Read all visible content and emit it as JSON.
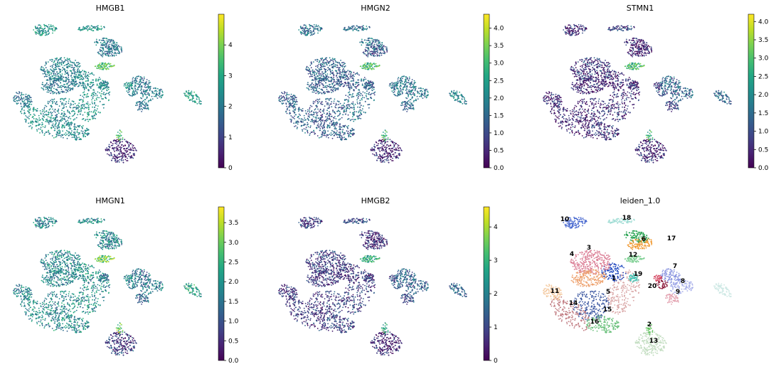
{
  "chart_data": [
    {
      "type": "scatter",
      "title": "HMGB1",
      "colorbar": {
        "min": 0,
        "max": 5.0,
        "ticks": [
          "0",
          "1",
          "2",
          "3",
          "4"
        ],
        "tick_values": [
          0,
          1,
          2,
          3,
          4
        ]
      },
      "cluster_levels": [
        2.2,
        2.4,
        2.6,
        2.6,
        2.4,
        2.6,
        2.0,
        2.0,
        2.0,
        2.2,
        2.8,
        2.0,
        3.6,
        0.6,
        2.0,
        2.0,
        2.0,
        2.4,
        2.6,
        2.8,
        2.0,
        3.6
      ]
    },
    {
      "type": "scatter",
      "title": "HMGN2",
      "colorbar": {
        "min": 0,
        "max": 4.4,
        "ticks": [
          "0.0",
          "0.5",
          "1.0",
          "1.5",
          "2.0",
          "2.5",
          "3.0",
          "3.5",
          "4.0"
        ],
        "tick_values": [
          0,
          0.5,
          1,
          1.5,
          2,
          2.5,
          3,
          3.5,
          4
        ]
      },
      "cluster_levels": [
        1.2,
        1.4,
        1.6,
        1.4,
        1.2,
        1.6,
        1.8,
        1.6,
        1.6,
        1.4,
        1.8,
        1.6,
        3.0,
        0.5,
        1.4,
        1.4,
        1.2,
        1.4,
        1.6,
        2.0,
        1.6,
        3.0
      ]
    },
    {
      "type": "scatter",
      "title": "STMN1",
      "colorbar": {
        "min": 0,
        "max": 4.2,
        "ticks": [
          "0.0",
          "0.5",
          "1.0",
          "1.5",
          "2.0",
          "2.5",
          "3.0",
          "3.5",
          "4.0"
        ],
        "tick_values": [
          0,
          0.5,
          1,
          1.5,
          2,
          2.5,
          3,
          3.5,
          4
        ]
      },
      "cluster_levels": [
        0.5,
        0.7,
        0.6,
        0.5,
        0.5,
        0.5,
        1.5,
        1.2,
        1.0,
        0.7,
        0.9,
        0.4,
        2.8,
        0.5,
        0.6,
        0.5,
        0.5,
        0.7,
        0.9,
        1.4,
        1.0,
        2.8
      ]
    },
    {
      "type": "scatter",
      "title": "HMGN1",
      "colorbar": {
        "min": 0,
        "max": 3.9,
        "ticks": [
          "0.0",
          "0.5",
          "1.0",
          "1.5",
          "2.0",
          "2.5",
          "3.0",
          "3.5"
        ],
        "tick_values": [
          0,
          0.5,
          1,
          1.5,
          2,
          2.5,
          3,
          3.5
        ]
      },
      "cluster_levels": [
        1.8,
        1.9,
        1.9,
        1.9,
        2.0,
        1.7,
        1.5,
        1.5,
        1.4,
        1.8,
        2.0,
        1.8,
        3.0,
        0.7,
        1.8,
        1.8,
        1.8,
        1.6,
        1.9,
        2.2,
        1.5,
        3.0
      ]
    },
    {
      "type": "scatter",
      "title": "HMGB2",
      "colorbar": {
        "min": 0,
        "max": 4.6,
        "ticks": [
          "0",
          "1",
          "2",
          "3",
          "4"
        ],
        "tick_values": [
          0,
          1,
          2,
          3,
          4
        ]
      },
      "cluster_levels": [
        0.8,
        1.0,
        0.9,
        0.8,
        0.7,
        0.8,
        1.6,
        1.3,
        1.2,
        0.9,
        1.2,
        0.6,
        2.8,
        0.5,
        0.8,
        0.8,
        0.7,
        0.9,
        1.1,
        1.5,
        1.3,
        2.8
      ]
    },
    {
      "type": "scatter",
      "title": "leiden_1.0",
      "categorical": true,
      "cluster_labels": [
        "1",
        "2",
        "3",
        "4",
        "5",
        "6",
        "7",
        "8",
        "9",
        "10",
        "11",
        "12",
        "13",
        "14",
        "15",
        "16",
        "17",
        "18",
        "19",
        "20"
      ]
    }
  ],
  "clusters": [
    {
      "id": "1",
      "color": "#3a56a0"
    },
    {
      "id": "2",
      "color": "#6cc17d"
    },
    {
      "id": "3",
      "color": "#d9a6a6"
    },
    {
      "id": "4",
      "color": "#c07a80"
    },
    {
      "id": "5",
      "color": "#1f48c0"
    },
    {
      "id": "6",
      "color": "#4a6ad0"
    },
    {
      "id": "7",
      "color": "#8a95e0"
    },
    {
      "id": "8",
      "color": "#a9b0ea"
    },
    {
      "id": "9",
      "color": "#e3a2b0"
    },
    {
      "id": "10",
      "color": "#db7f96"
    },
    {
      "id": "11",
      "color": "#d23f5a"
    },
    {
      "id": "12",
      "color": "#21a04c"
    },
    {
      "id": "13",
      "color": "#7dcf92"
    },
    {
      "id": "14",
      "color": "#c4dec2"
    },
    {
      "id": "15",
      "color": "#f3c79c"
    },
    {
      "id": "16",
      "color": "#eda06c"
    },
    {
      "id": "17",
      "color": "#f0982f"
    },
    {
      "id": "18",
      "color": "#45c4b4"
    },
    {
      "id": "19",
      "color": "#9fdcd4"
    },
    {
      "id": "20",
      "color": "#cde8e4"
    },
    {
      "id": "",
      "color": "#8b1a3a"
    },
    {
      "id": "",
      "color": "#59bf56"
    }
  ],
  "colormap": "viridis"
}
